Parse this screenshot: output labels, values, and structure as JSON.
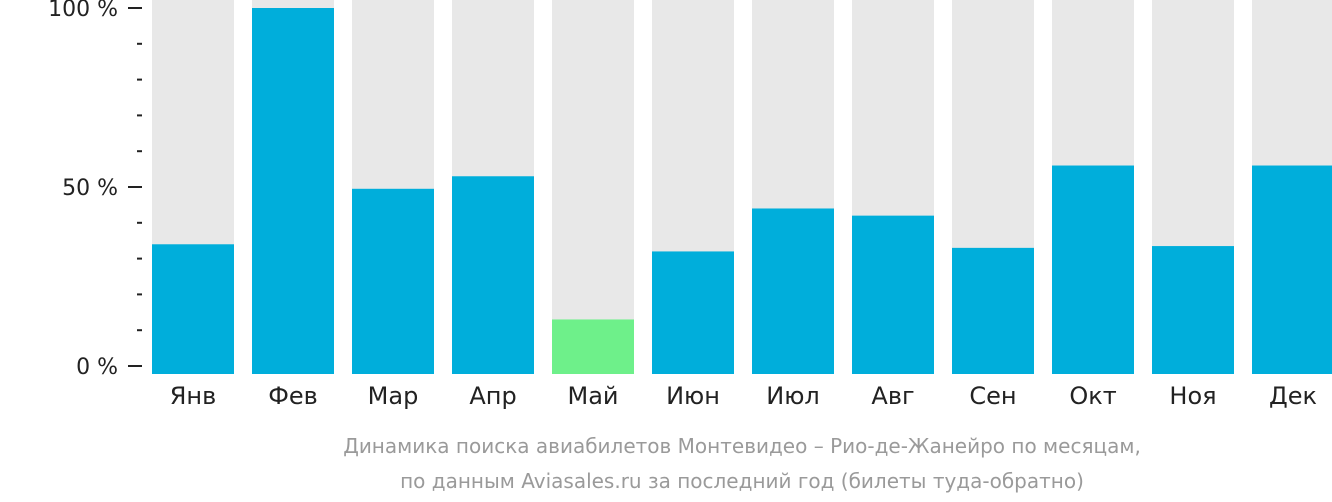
{
  "chart_data": {
    "type": "bar",
    "categories": [
      "Янв",
      "Фев",
      "Мар",
      "Апр",
      "Май",
      "Июн",
      "Июл",
      "Авг",
      "Сен",
      "Окт",
      "Ноя",
      "Дек"
    ],
    "values": [
      34,
      100,
      49.5,
      53,
      13,
      32,
      44,
      42,
      33,
      56,
      33.5,
      56
    ],
    "ylim": [
      0,
      100
    ],
    "y_ticks": [
      {
        "value": 0,
        "label": "0 %"
      },
      {
        "value": 50,
        "label": "50 %"
      },
      {
        "value": 100,
        "label": "100 %"
      }
    ],
    "minor_tick_step": 10,
    "highlight_index": 4,
    "colors": {
      "bar": "#00aedb",
      "highlight": "#6ef08a",
      "background": "#e8e8e8",
      "axis": "#222222"
    },
    "caption": [
      "Динамика поиска авиабилетов Монтевидео – Рио-де-Жанейро по месяцам,",
      "по данным Aviasales.ru за последний год (билеты туда-обратно)"
    ]
  }
}
